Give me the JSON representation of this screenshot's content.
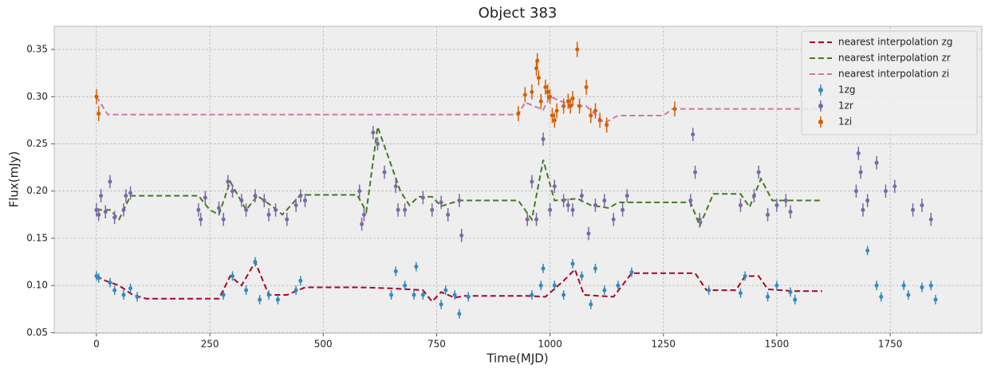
{
  "chart_data": {
    "type": "scatter",
    "title": "Object 383",
    "xlabel": "Time(MJD)",
    "ylabel": "Flux(mJy)",
    "xlim": [
      -93,
      1952
    ],
    "ylim": [
      0.0495,
      0.3745
    ],
    "xticks": [
      0,
      250,
      500,
      750,
      1000,
      1250,
      1500,
      1750
    ],
    "yticks": [
      0.05,
      {
        "value": 0.1,
        "label": "0.10"
      },
      0.15,
      {
        "value": 0.2,
        "label": "0.20"
      },
      0.25,
      {
        "value": 0.3,
        "label": "0.30"
      },
      0.35
    ],
    "grid": true,
    "legend": "upper right",
    "series": [
      {
        "name": "nearest interpolation zg",
        "color": "#A60628",
        "linestyle": "dashed",
        "x": [
          0,
          20,
          50,
          80,
          110,
          270,
          295,
          320,
          350,
          380,
          420,
          460,
          580,
          650,
          720,
          740,
          760,
          790,
          810,
          950,
          990,
          1030,
          1055,
          1075,
          1140,
          1180,
          1320,
          1345,
          1410,
          1430,
          1460,
          1480,
          1540,
          1600
        ],
        "values": [
          0.11,
          0.105,
          0.1,
          0.09,
          0.086,
          0.086,
          0.11,
          0.1,
          0.125,
          0.09,
          0.09,
          0.098,
          0.098,
          0.097,
          0.095,
          0.083,
          0.093,
          0.087,
          0.089,
          0.089,
          0.088,
          0.105,
          0.117,
          0.09,
          0.088,
          0.113,
          0.113,
          0.095,
          0.095,
          0.11,
          0.11,
          0.096,
          0.094,
          0.094
        ]
      },
      {
        "name": "nearest interpolation zr",
        "color": "#467821",
        "linestyle": "dashed",
        "x": [
          0,
          30,
          50,
          75,
          225,
          250,
          270,
          295,
          330,
          355,
          390,
          410,
          450,
          575,
          595,
          620,
          670,
          690,
          710,
          740,
          760,
          800,
          930,
          960,
          985,
          1010,
          1060,
          1090,
          1130,
          1150,
          1310,
          1330,
          1360,
          1420,
          1440,
          1465,
          1490,
          1600
        ],
        "values": [
          0.18,
          0.18,
          0.17,
          0.195,
          0.195,
          0.18,
          0.175,
          0.21,
          0.18,
          0.195,
          0.183,
          0.175,
          0.196,
          0.196,
          0.178,
          0.268,
          0.2,
          0.185,
          0.194,
          0.194,
          0.184,
          0.19,
          0.19,
          0.17,
          0.233,
          0.19,
          0.192,
          0.185,
          0.182,
          0.188,
          0.188,
          0.163,
          0.197,
          0.197,
          0.183,
          0.213,
          0.19,
          0.19
        ]
      },
      {
        "name": "nearest interpolation zi",
        "color": "#CC79A7",
        "linestyle": "dashed",
        "x": [
          0,
          25,
          930,
          945,
          985,
          1000,
          1040,
          1080,
          1120,
          1150,
          1250,
          1270,
          1600
        ],
        "values": [
          0.3,
          0.281,
          0.281,
          0.294,
          0.286,
          0.3,
          0.292,
          0.29,
          0.272,
          0.28,
          0.28,
          0.287,
          0.287
        ]
      },
      {
        "name": "1zg",
        "color": "#348ABD",
        "marker": "errorbar",
        "x": [
          0,
          5,
          30,
          40,
          60,
          75,
          90,
          280,
          300,
          330,
          350,
          360,
          380,
          400,
          440,
          450,
          650,
          660,
          680,
          700,
          705,
          720,
          760,
          770,
          790,
          800,
          820,
          960,
          980,
          985,
          1010,
          1030,
          1050,
          1070,
          1090,
          1100,
          1120,
          1150,
          1180,
          1350,
          1420,
          1430,
          1480,
          1500,
          1530,
          1540,
          1700,
          1720,
          1730,
          1780,
          1790,
          1820,
          1840,
          1850
        ],
        "values": [
          0.11,
          0.108,
          0.103,
          0.095,
          0.09,
          0.097,
          0.088,
          0.09,
          0.11,
          0.095,
          0.125,
          0.085,
          0.09,
          0.085,
          0.095,
          0.105,
          0.09,
          0.115,
          0.1,
          0.09,
          0.12,
          0.09,
          0.08,
          0.095,
          0.09,
          0.07,
          0.088,
          0.09,
          0.1,
          0.118,
          0.1,
          0.09,
          0.123,
          0.11,
          0.08,
          0.118,
          0.095,
          0.1,
          0.114,
          0.095,
          0.092,
          0.11,
          0.088,
          0.1,
          0.093,
          0.085,
          0.137,
          0.1,
          0.088,
          0.1,
          0.09,
          0.098,
          0.1,
          0.085
        ],
        "errors": [
          0.005,
          0.005,
          0.005,
          0.005,
          0.005,
          0.005,
          0.005,
          0.005,
          0.005,
          0.005,
          0.005,
          0.005,
          0.005,
          0.005,
          0.005,
          0.005,
          0.005,
          0.005,
          0.005,
          0.005,
          0.005,
          0.005,
          0.005,
          0.005,
          0.005,
          0.005,
          0.005,
          0.005,
          0.005,
          0.005,
          0.005,
          0.005,
          0.005,
          0.005,
          0.005,
          0.005,
          0.005,
          0.005,
          0.005,
          0.005,
          0.005,
          0.005,
          0.005,
          0.005,
          0.005,
          0.005,
          0.005,
          0.005,
          0.005,
          0.005,
          0.005,
          0.005,
          0.005,
          0.005
        ]
      },
      {
        "name": "1zr",
        "color": "#7A68A6",
        "marker": "errorbar",
        "x": [
          0,
          5,
          10,
          20,
          30,
          40,
          60,
          65,
          75,
          225,
          230,
          240,
          270,
          280,
          290,
          300,
          320,
          330,
          350,
          370,
          380,
          395,
          420,
          440,
          450,
          460,
          580,
          585,
          590,
          610,
          620,
          635,
          660,
          665,
          680,
          720,
          740,
          760,
          775,
          800,
          805,
          950,
          960,
          970,
          985,
          1000,
          1010,
          1030,
          1040,
          1050,
          1070,
          1085,
          1100,
          1120,
          1140,
          1160,
          1170,
          1310,
          1315,
          1320,
          1330,
          1420,
          1450,
          1460,
          1480,
          1500,
          1520,
          1530,
          1675,
          1680,
          1685,
          1690,
          1700,
          1720,
          1740,
          1760,
          1800,
          1820,
          1840
        ],
        "values": [
          0.18,
          0.175,
          0.195,
          0.178,
          0.21,
          0.172,
          0.18,
          0.195,
          0.198,
          0.18,
          0.17,
          0.193,
          0.182,
          0.17,
          0.21,
          0.2,
          0.19,
          0.18,
          0.195,
          0.19,
          0.175,
          0.18,
          0.17,
          0.185,
          0.195,
          0.19,
          0.2,
          0.165,
          0.175,
          0.262,
          0.25,
          0.22,
          0.205,
          0.18,
          0.18,
          0.193,
          0.18,
          0.188,
          0.175,
          0.19,
          0.153,
          0.17,
          0.21,
          0.17,
          0.255,
          0.18,
          0.205,
          0.19,
          0.185,
          0.18,
          0.195,
          0.155,
          0.185,
          0.19,
          0.17,
          0.18,
          0.195,
          0.19,
          0.26,
          0.22,
          0.17,
          0.185,
          0.195,
          0.22,
          0.175,
          0.185,
          0.19,
          0.178,
          0.2,
          0.24,
          0.22,
          0.18,
          0.19,
          0.23,
          0.2,
          0.205,
          0.18,
          0.185,
          0.17
        ],
        "errors": [
          0.007,
          0.007,
          0.007,
          0.007,
          0.007,
          0.007,
          0.007,
          0.007,
          0.007,
          0.007,
          0.007,
          0.007,
          0.007,
          0.007,
          0.007,
          0.007,
          0.007,
          0.007,
          0.007,
          0.007,
          0.007,
          0.007,
          0.007,
          0.007,
          0.007,
          0.007,
          0.007,
          0.007,
          0.007,
          0.007,
          0.007,
          0.007,
          0.007,
          0.007,
          0.007,
          0.007,
          0.007,
          0.007,
          0.007,
          0.007,
          0.007,
          0.007,
          0.007,
          0.007,
          0.007,
          0.007,
          0.007,
          0.007,
          0.007,
          0.007,
          0.007,
          0.007,
          0.007,
          0.007,
          0.007,
          0.007,
          0.007,
          0.007,
          0.007,
          0.007,
          0.007,
          0.007,
          0.007,
          0.007,
          0.007,
          0.007,
          0.007,
          0.007,
          0.007,
          0.007,
          0.007,
          0.007,
          0.007,
          0.007,
          0.007,
          0.007,
          0.007,
          0.007,
          0.007
        ]
      },
      {
        "name": "1zi",
        "color": "#D55E00",
        "marker": "errorbar",
        "x": [
          0,
          5,
          930,
          945,
          960,
          970,
          972,
          975,
          980,
          990,
          995,
          1000,
          1005,
          1010,
          1015,
          1030,
          1040,
          1045,
          1050,
          1060,
          1065,
          1080,
          1090,
          1100,
          1110,
          1125,
          1275
        ],
        "values": [
          0.3,
          0.282,
          0.282,
          0.302,
          0.305,
          0.33,
          0.338,
          0.32,
          0.295,
          0.31,
          0.305,
          0.3,
          0.28,
          0.275,
          0.285,
          0.29,
          0.295,
          0.29,
          0.298,
          0.35,
          0.29,
          0.31,
          0.28,
          0.285,
          0.275,
          0.27,
          0.287
        ],
        "errors": [
          0.008,
          0.008,
          0.008,
          0.008,
          0.008,
          0.008,
          0.008,
          0.008,
          0.008,
          0.008,
          0.008,
          0.008,
          0.008,
          0.008,
          0.008,
          0.008,
          0.008,
          0.008,
          0.008,
          0.008,
          0.008,
          0.008,
          0.008,
          0.008,
          0.008,
          0.008,
          0.008
        ]
      }
    ]
  }
}
